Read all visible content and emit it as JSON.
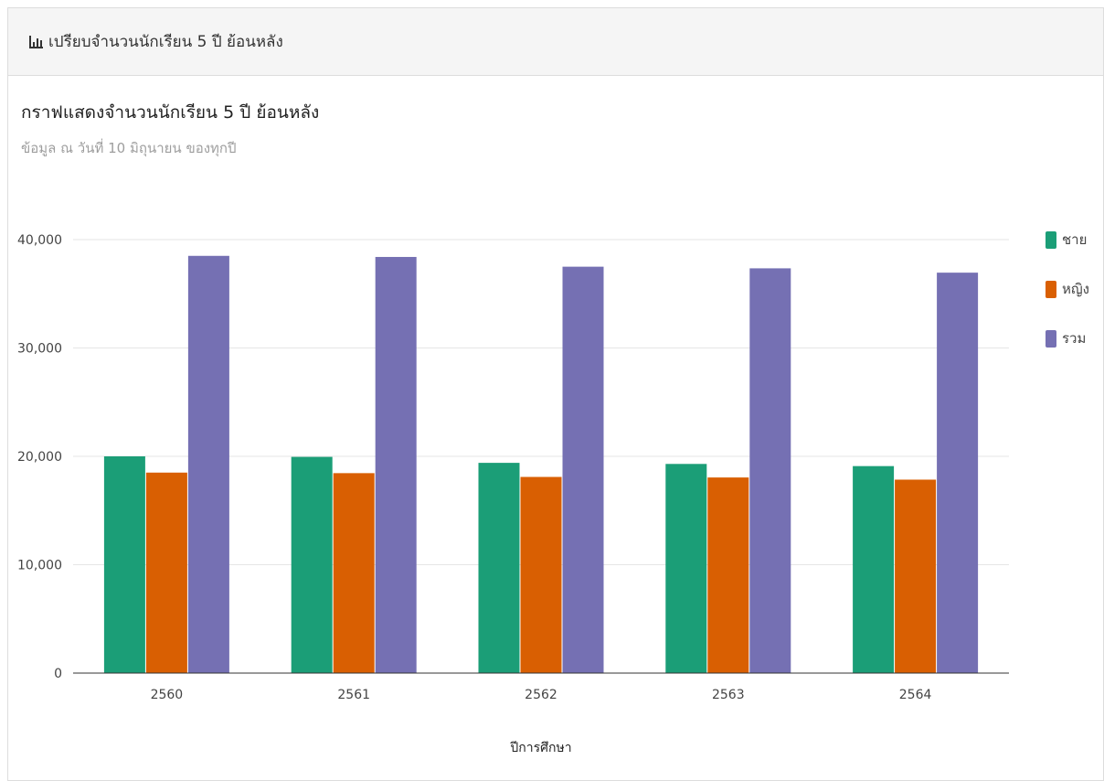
{
  "panel": {
    "heading": "เปรียบจำนวนนักเรียน 5 ปี ย้อนหลัง",
    "heading_icon": "bar-chart-icon"
  },
  "chart_data": {
    "type": "bar",
    "title": "กราฟแสดงจำนวนนักเรียน 5 ปี ย้อนหลัง",
    "subtitle": "ข้อมูล ณ วันที่ 10 มิถุนายน ของทุกปี",
    "xlabel": "ปีการศึกษา",
    "ylabel": "",
    "categories": [
      "2560",
      "2561",
      "2562",
      "2563",
      "2564"
    ],
    "ylim": [
      0,
      40000
    ],
    "yticks": [
      0,
      10000,
      20000,
      30000,
      40000
    ],
    "ytick_labels": [
      "0",
      "10,000",
      "20,000",
      "30,000",
      "40,000"
    ],
    "grid": true,
    "legend_position": "right",
    "series": [
      {
        "name": "ชาย",
        "color": "#1b9e77",
        "values": [
          20000,
          19950,
          19400,
          19300,
          19100
        ]
      },
      {
        "name": "หญิง",
        "color": "#d95f02",
        "values": [
          18500,
          18450,
          18100,
          18050,
          17850
        ]
      },
      {
        "name": "รวม",
        "color": "#7570b3",
        "values": [
          38500,
          38400,
          37500,
          37350,
          36950
        ]
      }
    ]
  }
}
